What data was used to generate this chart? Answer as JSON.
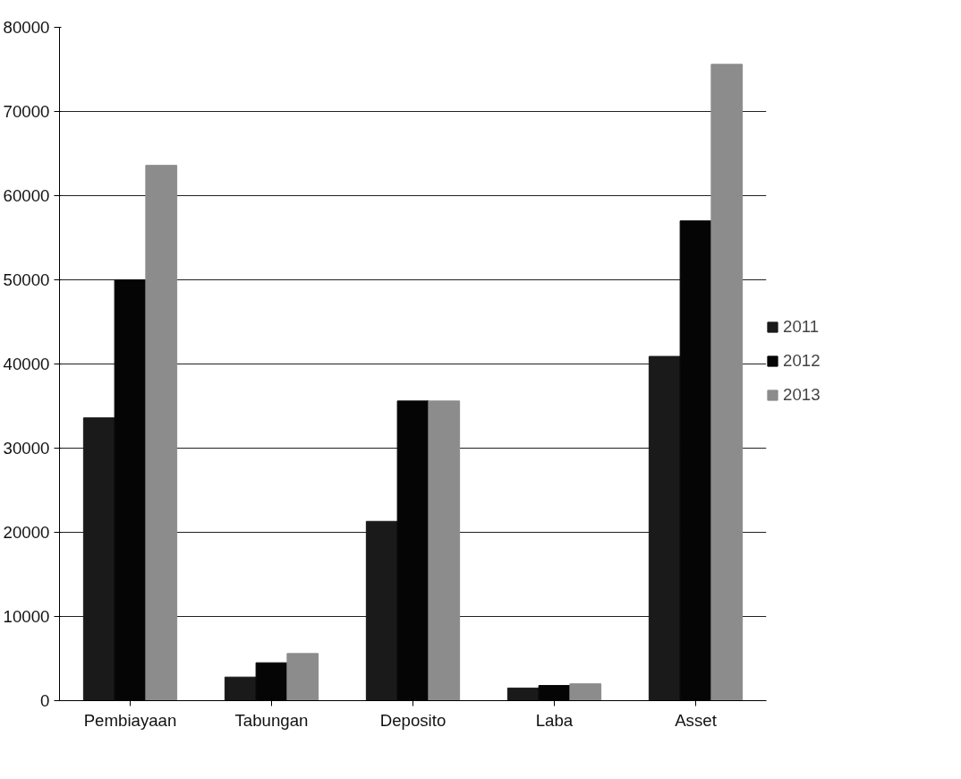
{
  "chart_data": {
    "type": "bar",
    "categories": [
      "Pembiayaan",
      "Tabungan",
      "Deposito",
      "Laba",
      "Asset"
    ],
    "series": [
      {
        "name": "2011",
        "color": "#1a1a1a",
        "values": [
          33600,
          2800,
          21300,
          1500,
          40900
        ]
      },
      {
        "name": "2012",
        "color": "#050505",
        "values": [
          50000,
          4500,
          35600,
          1800,
          57000
        ]
      },
      {
        "name": "2013",
        "color": "#8c8c8c",
        "values": [
          63600,
          5600,
          35600,
          2000,
          75600
        ]
      }
    ],
    "ylim": [
      0,
      80000
    ],
    "yticks": [
      0,
      10000,
      20000,
      30000,
      40000,
      50000,
      60000,
      70000,
      80000
    ],
    "grid": "y",
    "legend": "right"
  }
}
